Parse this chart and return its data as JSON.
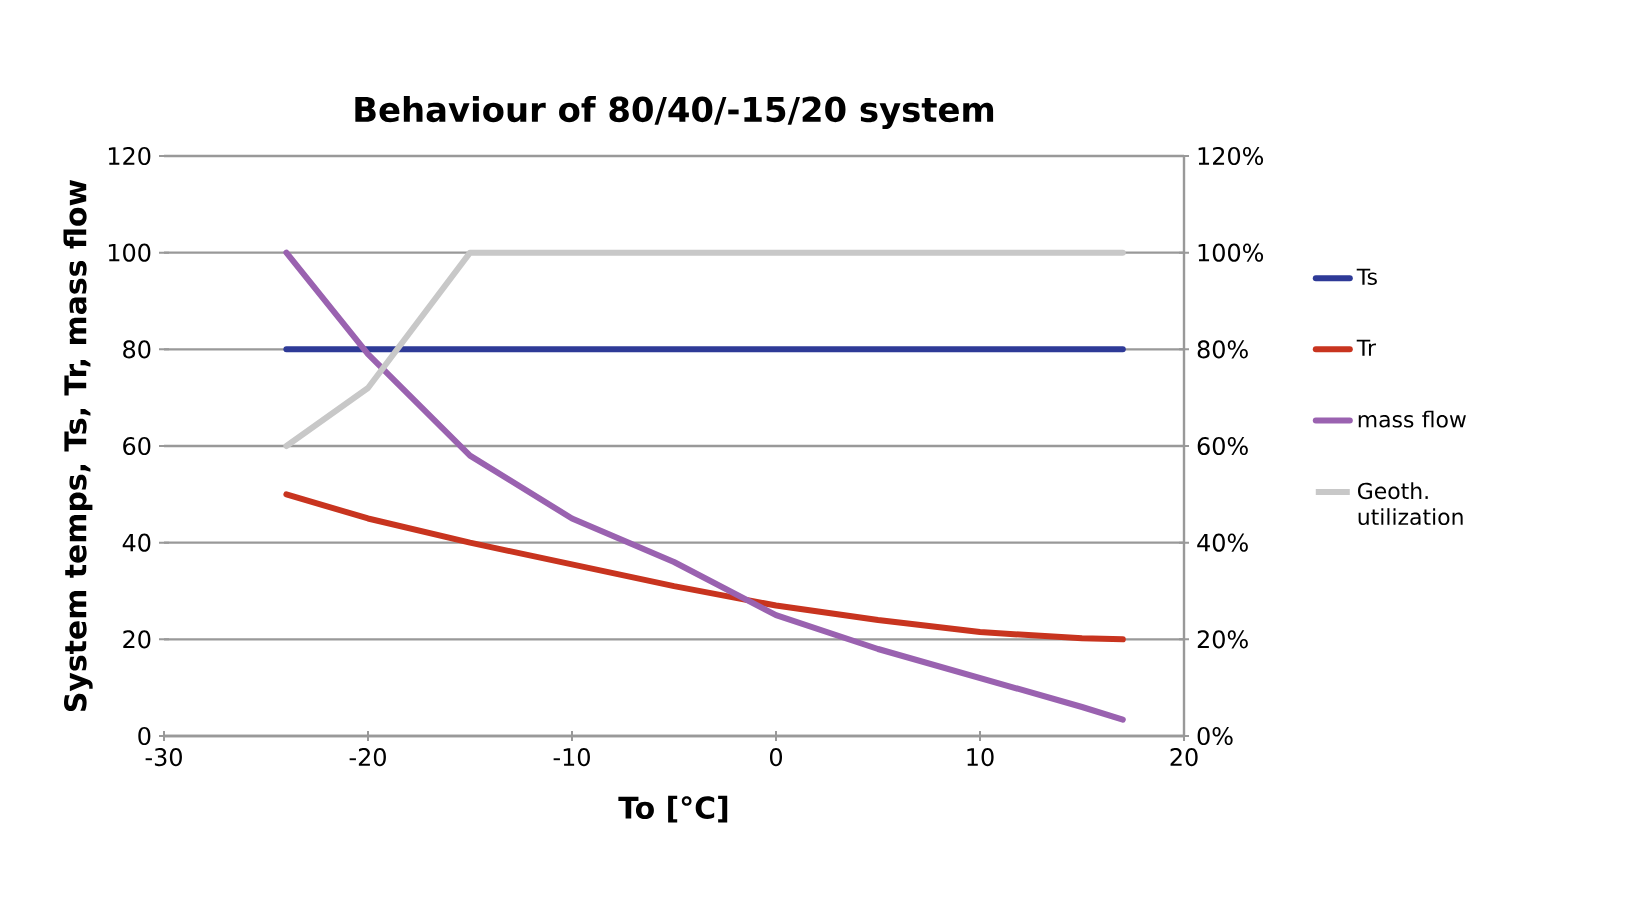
{
  "chart_data": {
    "type": "line",
    "title": "Behaviour of 80/40/-15/20 system",
    "xlabel": "To [°C]",
    "ylabel": "System temps, Ts, Tr, mass flow",
    "series": [
      {
        "name": "Ts",
        "color": "#2e3a97",
        "x": [
          -24,
          -15,
          0,
          17
        ],
        "values": [
          80,
          80,
          80,
          80
        ]
      },
      {
        "name": "Tr",
        "color": "#c8341f",
        "x": [
          -24,
          -20,
          -15,
          -10,
          -5,
          0,
          5,
          10,
          15,
          17
        ],
        "values": [
          50,
          45,
          40,
          35.5,
          31,
          27,
          24,
          21.5,
          20.2,
          20
        ]
      },
      {
        "name": "mass flow",
        "color": "#9a62b0",
        "x": [
          -24,
          -20,
          -15,
          -10,
          -5,
          0,
          5,
          10,
          15,
          17
        ],
        "values": [
          100,
          79,
          58,
          45,
          36,
          25,
          18,
          12,
          6,
          3.4
        ]
      },
      {
        "name": "Geoth. utilization",
        "color": "#c8c8c8",
        "axis": "y2",
        "x": [
          -24,
          -20,
          -15,
          0,
          17
        ],
        "values": [
          60,
          72,
          100,
          100,
          100
        ]
      }
    ],
    "xlim": [
      -30,
      20
    ],
    "xticks": [
      -30,
      -20,
      -10,
      0,
      10,
      20
    ],
    "ylim": [
      0,
      120
    ],
    "yticks": [
      0,
      20,
      40,
      60,
      80,
      100,
      120
    ],
    "y2lim": [
      0,
      120
    ],
    "y2ticks": [
      {
        "value": 0,
        "label": "0%"
      },
      {
        "value": 20,
        "label": "20%"
      },
      {
        "value": 40,
        "label": "40%"
      },
      {
        "value": 60,
        "label": "60%"
      },
      {
        "value": 80,
        "label": "80%"
      },
      {
        "value": 100,
        "label": "100%"
      },
      {
        "value": 120,
        "label": "120%"
      }
    ],
    "grid": "y",
    "legend": "right",
    "marker": "none",
    "line_style": "solid"
  }
}
